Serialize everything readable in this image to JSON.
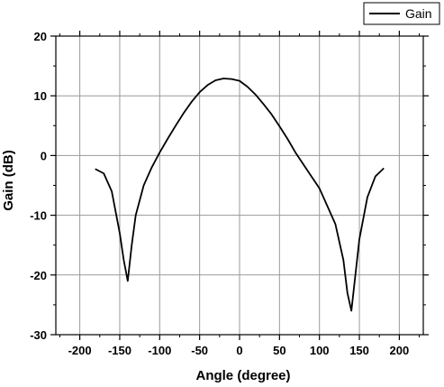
{
  "chart_data": {
    "type": "line",
    "xlabel": "Angle (degree)",
    "ylabel": "Gain (dB)",
    "xlim": [
      -230,
      230
    ],
    "ylim": [
      -30,
      20
    ],
    "xticks": [
      -200,
      -150,
      -100,
      -50,
      0,
      50,
      100,
      150,
      200
    ],
    "yticks": [
      -30,
      -20,
      -10,
      0,
      10,
      20
    ],
    "xtick_labels": [
      "-200",
      "-150",
      "-100",
      "-50",
      "0",
      "50",
      "100",
      "150",
      "200"
    ],
    "ytick_labels": [
      "-30",
      "-20",
      "-10",
      "0",
      "10",
      "20"
    ],
    "grid": true,
    "legend_position": "top-right",
    "line_color": "#000000",
    "series": [
      {
        "name": "Gain",
        "x": [
          -180,
          -170,
          -160,
          -150,
          -145,
          -140,
          -135,
          -130,
          -120,
          -110,
          -100,
          -90,
          -80,
          -70,
          -60,
          -50,
          -40,
          -30,
          -20,
          -10,
          0,
          10,
          20,
          30,
          40,
          50,
          60,
          70,
          80,
          90,
          100,
          110,
          120,
          130,
          135,
          140,
          145,
          150,
          160,
          170,
          180
        ],
        "y": [
          -2.3,
          -3.0,
          -6.0,
          -13.0,
          -17.5,
          -21.0,
          -15.0,
          -10.0,
          -5.0,
          -2.0,
          0.5,
          2.8,
          5.0,
          7.1,
          9.0,
          10.6,
          11.8,
          12.6,
          12.9,
          12.8,
          12.5,
          11.5,
          10.2,
          8.6,
          6.9,
          4.9,
          2.8,
          0.5,
          -1.5,
          -3.5,
          -5.5,
          -8.5,
          -11.5,
          -17.5,
          -23.0,
          -26.0,
          -20.0,
          -14.0,
          -7.0,
          -3.5,
          -2.2
        ]
      }
    ]
  }
}
